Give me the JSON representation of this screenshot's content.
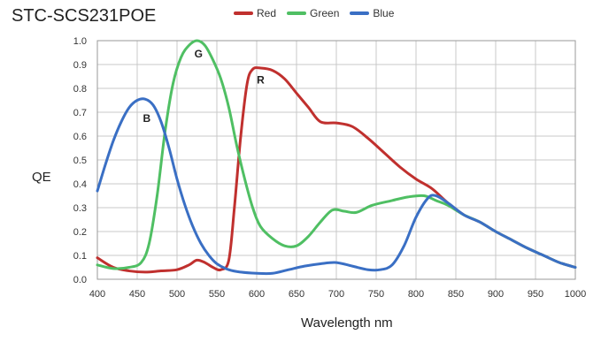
{
  "chart_data": {
    "type": "line",
    "title": "STC-SCS231POE",
    "xlabel": "Wavelength nm",
    "ylabel": "QE",
    "xlim": [
      400,
      1000
    ],
    "ylim": [
      0,
      1.0
    ],
    "x_ticks": [
      "400",
      "450",
      "500",
      "550",
      "600",
      "650",
      "700",
      "750",
      "800",
      "850",
      "900",
      "950",
      "1000"
    ],
    "y_ticks": [
      "0.0",
      "0.1",
      "0.2",
      "0.3",
      "0.4",
      "0.5",
      "0.6",
      "0.7",
      "0.8",
      "0.9",
      "1.0"
    ],
    "grid": true,
    "legend_position": "top",
    "series": [
      {
        "name": "Red",
        "color": "#c0302e",
        "marker": "R",
        "marker_at": [
          605,
          0.82
        ],
        "points": [
          [
            400,
            0.09
          ],
          [
            420,
            0.05
          ],
          [
            440,
            0.035
          ],
          [
            460,
            0.03
          ],
          [
            480,
            0.035
          ],
          [
            500,
            0.04
          ],
          [
            515,
            0.06
          ],
          [
            525,
            0.08
          ],
          [
            535,
            0.07
          ],
          [
            545,
            0.05
          ],
          [
            555,
            0.04
          ],
          [
            565,
            0.08
          ],
          [
            572,
            0.3
          ],
          [
            580,
            0.6
          ],
          [
            588,
            0.82
          ],
          [
            595,
            0.88
          ],
          [
            605,
            0.885
          ],
          [
            620,
            0.875
          ],
          [
            635,
            0.84
          ],
          [
            650,
            0.78
          ],
          [
            665,
            0.72
          ],
          [
            680,
            0.66
          ],
          [
            700,
            0.655
          ],
          [
            720,
            0.64
          ],
          [
            740,
            0.59
          ],
          [
            760,
            0.53
          ],
          [
            780,
            0.47
          ],
          [
            800,
            0.42
          ],
          [
            820,
            0.38
          ],
          [
            840,
            0.32
          ],
          [
            860,
            0.27
          ],
          [
            880,
            0.24
          ],
          [
            900,
            0.2
          ],
          [
            920,
            0.165
          ],
          [
            940,
            0.13
          ],
          [
            960,
            0.1
          ],
          [
            980,
            0.07
          ],
          [
            1000,
            0.05
          ]
        ]
      },
      {
        "name": "Green",
        "color": "#4fbf63",
        "marker": "G",
        "marker_at": [
          527,
          0.93
        ],
        "points": [
          [
            400,
            0.06
          ],
          [
            420,
            0.045
          ],
          [
            440,
            0.05
          ],
          [
            455,
            0.07
          ],
          [
            465,
            0.15
          ],
          [
            475,
            0.35
          ],
          [
            485,
            0.62
          ],
          [
            495,
            0.82
          ],
          [
            505,
            0.93
          ],
          [
            515,
            0.98
          ],
          [
            525,
            1.0
          ],
          [
            535,
            0.98
          ],
          [
            545,
            0.92
          ],
          [
            555,
            0.84
          ],
          [
            565,
            0.72
          ],
          [
            575,
            0.56
          ],
          [
            585,
            0.42
          ],
          [
            595,
            0.3
          ],
          [
            605,
            0.22
          ],
          [
            620,
            0.17
          ],
          [
            635,
            0.14
          ],
          [
            650,
            0.14
          ],
          [
            665,
            0.18
          ],
          [
            680,
            0.24
          ],
          [
            695,
            0.29
          ],
          [
            710,
            0.285
          ],
          [
            725,
            0.28
          ],
          [
            745,
            0.31
          ],
          [
            770,
            0.33
          ],
          [
            790,
            0.345
          ],
          [
            810,
            0.35
          ],
          [
            825,
            0.33
          ],
          [
            840,
            0.31
          ],
          [
            860,
            0.27
          ],
          [
            880,
            0.24
          ],
          [
            900,
            0.2
          ],
          [
            920,
            0.165
          ],
          [
            940,
            0.13
          ],
          [
            960,
            0.1
          ],
          [
            980,
            0.07
          ],
          [
            1000,
            0.05
          ]
        ]
      },
      {
        "name": "Blue",
        "color": "#3a6fc4",
        "marker": "B",
        "marker_at": [
          462,
          0.66
        ],
        "points": [
          [
            400,
            0.37
          ],
          [
            410,
            0.48
          ],
          [
            420,
            0.58
          ],
          [
            430,
            0.66
          ],
          [
            440,
            0.72
          ],
          [
            450,
            0.75
          ],
          [
            460,
            0.755
          ],
          [
            470,
            0.73
          ],
          [
            480,
            0.66
          ],
          [
            490,
            0.55
          ],
          [
            500,
            0.42
          ],
          [
            510,
            0.31
          ],
          [
            520,
            0.22
          ],
          [
            530,
            0.15
          ],
          [
            540,
            0.1
          ],
          [
            550,
            0.065
          ],
          [
            565,
            0.04
          ],
          [
            580,
            0.03
          ],
          [
            600,
            0.025
          ],
          [
            620,
            0.025
          ],
          [
            640,
            0.04
          ],
          [
            660,
            0.055
          ],
          [
            680,
            0.065
          ],
          [
            700,
            0.07
          ],
          [
            720,
            0.055
          ],
          [
            740,
            0.04
          ],
          [
            755,
            0.04
          ],
          [
            770,
            0.06
          ],
          [
            785,
            0.14
          ],
          [
            800,
            0.26
          ],
          [
            815,
            0.34
          ],
          [
            825,
            0.35
          ],
          [
            840,
            0.32
          ],
          [
            860,
            0.27
          ],
          [
            880,
            0.24
          ],
          [
            900,
            0.2
          ],
          [
            920,
            0.165
          ],
          [
            940,
            0.13
          ],
          [
            960,
            0.1
          ],
          [
            980,
            0.07
          ],
          [
            1000,
            0.05
          ]
        ]
      }
    ]
  }
}
